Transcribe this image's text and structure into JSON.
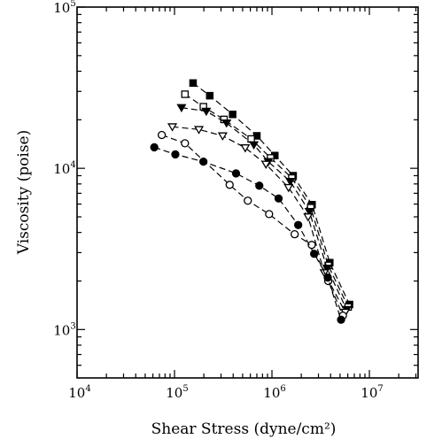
{
  "chart_data": {
    "type": "scatter",
    "title": "",
    "xlabel": "Shear Stress (dyne/cm²)",
    "ylabel": "Viscosity (poise)",
    "x_scale": "log",
    "y_scale": "log",
    "xlim": [
      10000,
      31600000
    ],
    "ylim": [
      501,
      100000
    ],
    "grid": false,
    "legend": "none",
    "x_ticks": [
      {
        "value": 10000,
        "base": "10",
        "exp": "4"
      },
      {
        "value": 100000,
        "base": "10",
        "exp": "5"
      },
      {
        "value": 1000000,
        "base": "10",
        "exp": "6"
      },
      {
        "value": 10000000,
        "base": "10",
        "exp": "7"
      }
    ],
    "y_ticks": [
      {
        "value": 1000,
        "base": "10",
        "exp": "3"
      },
      {
        "value": 10000,
        "base": "10",
        "exp": "4"
      },
      {
        "value": 100000,
        "base": "10",
        "exp": "5"
      }
    ],
    "series": [
      {
        "marker": "filled-square",
        "points": [
          [
            155000,
            33800
          ],
          [
            230000,
            28200
          ],
          [
            395000,
            21600
          ],
          [
            700000,
            15900
          ],
          [
            1070000,
            12000
          ],
          [
            1650000,
            9000
          ],
          [
            2580000,
            5950
          ],
          [
            3920000,
            2600
          ],
          [
            6250000,
            1430
          ]
        ]
      },
      {
        "marker": "open-square",
        "points": [
          [
            128000,
            28800
          ],
          [
            198000,
            24100
          ],
          [
            322000,
            20100
          ],
          [
            612000,
            15200
          ],
          [
            968000,
            11600
          ],
          [
            1600000,
            8700
          ],
          [
            2500000,
            5700
          ],
          [
            3780000,
            2500
          ],
          [
            6050000,
            1380
          ]
        ]
      },
      {
        "marker": "filled-triangle-down",
        "points": [
          [
            118000,
            23800
          ],
          [
            212000,
            22600
          ],
          [
            342000,
            19100
          ],
          [
            652000,
            14000
          ],
          [
            918000,
            11000
          ],
          [
            1540000,
            8300
          ],
          [
            2420000,
            5400
          ],
          [
            3680000,
            2400
          ],
          [
            5850000,
            1330
          ]
        ]
      },
      {
        "marker": "open-triangle-down",
        "points": [
          [
            95000,
            18100
          ],
          [
            178000,
            17400
          ],
          [
            312000,
            15900
          ],
          [
            532000,
            13400
          ],
          [
            868000,
            10600
          ],
          [
            1480000,
            7600
          ],
          [
            2350000,
            5000
          ],
          [
            3450000,
            2250
          ],
          [
            5650000,
            1280
          ]
        ]
      },
      {
        "marker": "open-circle",
        "points": [
          [
            74000,
            16100
          ],
          [
            128000,
            14300
          ],
          [
            368000,
            7900
          ],
          [
            565000,
            6300
          ],
          [
            935000,
            5200
          ],
          [
            1710000,
            3900
          ],
          [
            2560000,
            3350
          ],
          [
            3780000,
            2000
          ],
          [
            5350000,
            1220
          ]
        ]
      },
      {
        "marker": "filled-circle",
        "points": [
          [
            62000,
            13500
          ],
          [
            102000,
            12200
          ],
          [
            198000,
            11000
          ],
          [
            428000,
            9300
          ],
          [
            742000,
            7800
          ],
          [
            1170000,
            6500
          ],
          [
            1860000,
            4450
          ],
          [
            2710000,
            2950
          ],
          [
            3740000,
            2100
          ],
          [
            5120000,
            1150
          ]
        ]
      }
    ]
  }
}
